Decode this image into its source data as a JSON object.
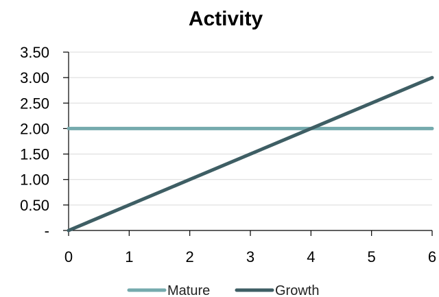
{
  "chart_data": {
    "type": "line",
    "title": "Activity",
    "x": [
      0,
      1,
      2,
      3,
      4,
      5,
      6
    ],
    "xlim": [
      0,
      6
    ],
    "ylim": [
      0,
      3.5
    ],
    "x_tick_labels": [
      "0",
      "1",
      "2",
      "3",
      "4",
      "5",
      "6"
    ],
    "y_ticks": [
      0,
      0.5,
      1.0,
      1.5,
      2.0,
      2.5,
      3.0,
      3.5
    ],
    "y_tick_labels": [
      "-",
      "0.50",
      "1.00",
      "1.50",
      "2.00",
      "2.50",
      "3.00",
      "3.50"
    ],
    "grid": "horizontal",
    "legend_position": "bottom",
    "series": [
      {
        "name": "Mature",
        "color": "#75aaad",
        "values": [
          2,
          2,
          2,
          2,
          2,
          2,
          2
        ]
      },
      {
        "name": "Growth",
        "color": "#3e5e64",
        "values": [
          0,
          0.5,
          1.0,
          1.5,
          2.0,
          2.5,
          3.0
        ]
      }
    ]
  }
}
